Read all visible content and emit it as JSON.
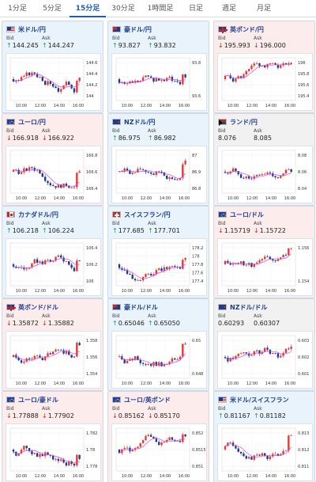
{
  "tabs": [
    {
      "label": "1分足",
      "active": false
    },
    {
      "label": "5分足",
      "active": false
    },
    {
      "label": "15分足",
      "active": true
    },
    {
      "label": "30分足",
      "active": false
    },
    {
      "label": "1時間足",
      "active": false
    },
    {
      "label": "日足",
      "active": false
    },
    {
      "label": "週足",
      "active": false
    },
    {
      "label": "月足",
      "active": false
    }
  ],
  "colors": {
    "candle_up": "#e53935",
    "candle_down": "#1e3a8a",
    "ma": "#d946ef",
    "bg_up": "#e8f3fc",
    "bg_down": "#fdecec",
    "bg_flat": "#f1f1f1"
  },
  "labels": {
    "bid": "Bid",
    "ask": "Ask"
  },
  "x_ticks": [
    "10:00",
    "12:00",
    "14:00",
    "16:00"
  ],
  "pairs": [
    {
      "name": "米ドル/円",
      "flag": "us",
      "trend": "up",
      "bid": "144.245",
      "ask": "144.247",
      "y_ticks": [
        "144.6",
        "144.4",
        "144.2",
        "144"
      ]
    },
    {
      "name": "豪ドル/円",
      "flag": "au",
      "trend": "up",
      "bid": "93.827",
      "ask": "93.832",
      "y_ticks": [
        "93.8",
        "93.6"
      ]
    },
    {
      "name": "英ポンド/円",
      "flag": "gb",
      "trend": "down",
      "bid": "195.993",
      "ask": "196.000",
      "y_ticks": [
        "196",
        "195.8",
        "195.6",
        "195.4"
      ]
    },
    {
      "name": "ユーロ/円",
      "flag": "eu",
      "trend": "down",
      "bid": "166.918",
      "ask": "166.922",
      "y_ticks": [
        "166.8",
        "166.6",
        "166.4"
      ]
    },
    {
      "name": "NZドル/円",
      "flag": "nz",
      "trend": "up",
      "bid": "86.975",
      "ask": "86.982",
      "y_ticks": [
        "87",
        "86.9",
        "86.8"
      ]
    },
    {
      "name": "ランド/円",
      "flag": "za",
      "trend": "flat",
      "bid": "8.076",
      "ask": "8.085",
      "y_ticks": [
        "8.08",
        "8.06",
        "8.04"
      ]
    },
    {
      "name": "カナダドル/円",
      "flag": "ca",
      "trend": "up",
      "bid": "106.218",
      "ask": "106.224",
      "y_ticks": [
        "106.4",
        "106.2",
        "106"
      ]
    },
    {
      "name": "スイスフラン/円",
      "flag": "ch",
      "trend": "up",
      "bid": "177.685",
      "ask": "177.701",
      "y_ticks": [
        "178.2",
        "178",
        "177.8",
        "177.6",
        "177.4"
      ]
    },
    {
      "name": "ユーロ/ドル",
      "flag": "eu",
      "trend": "down",
      "bid": "1.15719",
      "ask": "1.15722",
      "y_ticks": [
        "1.156",
        "1.154"
      ]
    },
    {
      "name": "英ポンド/ドル",
      "flag": "gb",
      "trend": "down",
      "bid": "1.35872",
      "ask": "1.35882",
      "y_ticks": [
        "1.358",
        "1.356",
        "1.354"
      ]
    },
    {
      "name": "豪ドル/ドル",
      "flag": "au",
      "trend": "up",
      "bid": "0.65046",
      "ask": "0.65050",
      "y_ticks": [
        "0.65",
        "0.648"
      ]
    },
    {
      "name": "NZドル/ドル",
      "flag": "nz",
      "trend": "flat",
      "bid": "0.60293",
      "ask": "0.60307",
      "y_ticks": [
        "0.603",
        "0.602",
        "0.601"
      ]
    },
    {
      "name": "ユーロ/豪ドル",
      "flag": "eu",
      "trend": "down",
      "bid": "1.77888",
      "ask": "1.77902",
      "y_ticks": [
        "1.782",
        "1.78",
        "1.778"
      ]
    },
    {
      "name": "ユーロ/英ポンド",
      "flag": "eu",
      "trend": "down",
      "bid": "0.85162",
      "ask": "0.85170",
      "y_ticks": [
        "0.852",
        "0.8515",
        "0.851"
      ]
    },
    {
      "name": "米ドル/スイスフラン",
      "flag": "us",
      "trend": "up",
      "bid": "0.81167",
      "ask": "0.81182",
      "y_ticks": [
        "0.813",
        "0.812",
        "0.811"
      ]
    }
  ]
}
